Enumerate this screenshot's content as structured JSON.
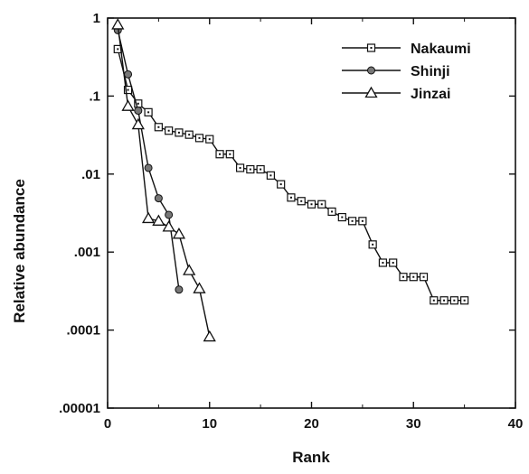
{
  "chart_data": {
    "type": "line",
    "title": "",
    "xlabel": "Rank",
    "ylabel": "Relative abundance",
    "xlim": [
      0,
      40
    ],
    "ylim": [
      1e-05,
      1
    ],
    "yscale": "log",
    "grid": false,
    "legend_position": "top-right",
    "x_ticks": [
      {
        "value": 0,
        "label": "0"
      },
      {
        "value": 10,
        "label": "10"
      },
      {
        "value": 20,
        "label": "20"
      },
      {
        "value": 30,
        "label": "30"
      },
      {
        "value": 40,
        "label": "40"
      }
    ],
    "y_ticks": [
      {
        "value": 1,
        "label": "1"
      },
      {
        "value": 0.1,
        "label": ".1"
      },
      {
        "value": 0.01,
        "label": ".01"
      },
      {
        "value": 0.001,
        "label": ".001"
      },
      {
        "value": 0.0001,
        "label": ".0001"
      },
      {
        "value": 1e-05,
        "label": ".00001"
      }
    ],
    "series": [
      {
        "name": "Nakaumi",
        "marker": "open-square-dot",
        "x": [
          1,
          2,
          3,
          4,
          5,
          6,
          7,
          8,
          9,
          10,
          11,
          12,
          13,
          14,
          15,
          16,
          17,
          18,
          19,
          20,
          21,
          22,
          23,
          24,
          25,
          26,
          27,
          28,
          29,
          30,
          31,
          32,
          33,
          34,
          35
        ],
        "y": [
          0.4,
          0.12,
          0.08,
          0.062,
          0.04,
          0.036,
          0.034,
          0.032,
          0.029,
          0.028,
          0.018,
          0.018,
          0.012,
          0.0115,
          0.0115,
          0.0096,
          0.0074,
          0.005,
          0.0045,
          0.0041,
          0.0041,
          0.0033,
          0.0028,
          0.0025,
          0.0025,
          0.00125,
          0.00073,
          0.00073,
          0.00048,
          0.00048,
          0.00048,
          0.00024,
          0.00024,
          0.00024,
          0.00024
        ]
      },
      {
        "name": "Shinji",
        "marker": "filled-circle",
        "x": [
          1,
          2,
          3,
          4,
          5,
          6,
          7
        ],
        "y": [
          0.7,
          0.19,
          0.065,
          0.012,
          0.0049,
          0.003,
          0.00033
        ]
      },
      {
        "name": "Jinzai",
        "marker": "open-triangle",
        "x": [
          1,
          2,
          3,
          4,
          5,
          6,
          7,
          8,
          9,
          10
        ],
        "y": [
          0.82,
          0.074,
          0.043,
          0.0027,
          0.0025,
          0.0021,
          0.0017,
          0.00058,
          0.00034,
          8.2e-05
        ]
      }
    ]
  }
}
